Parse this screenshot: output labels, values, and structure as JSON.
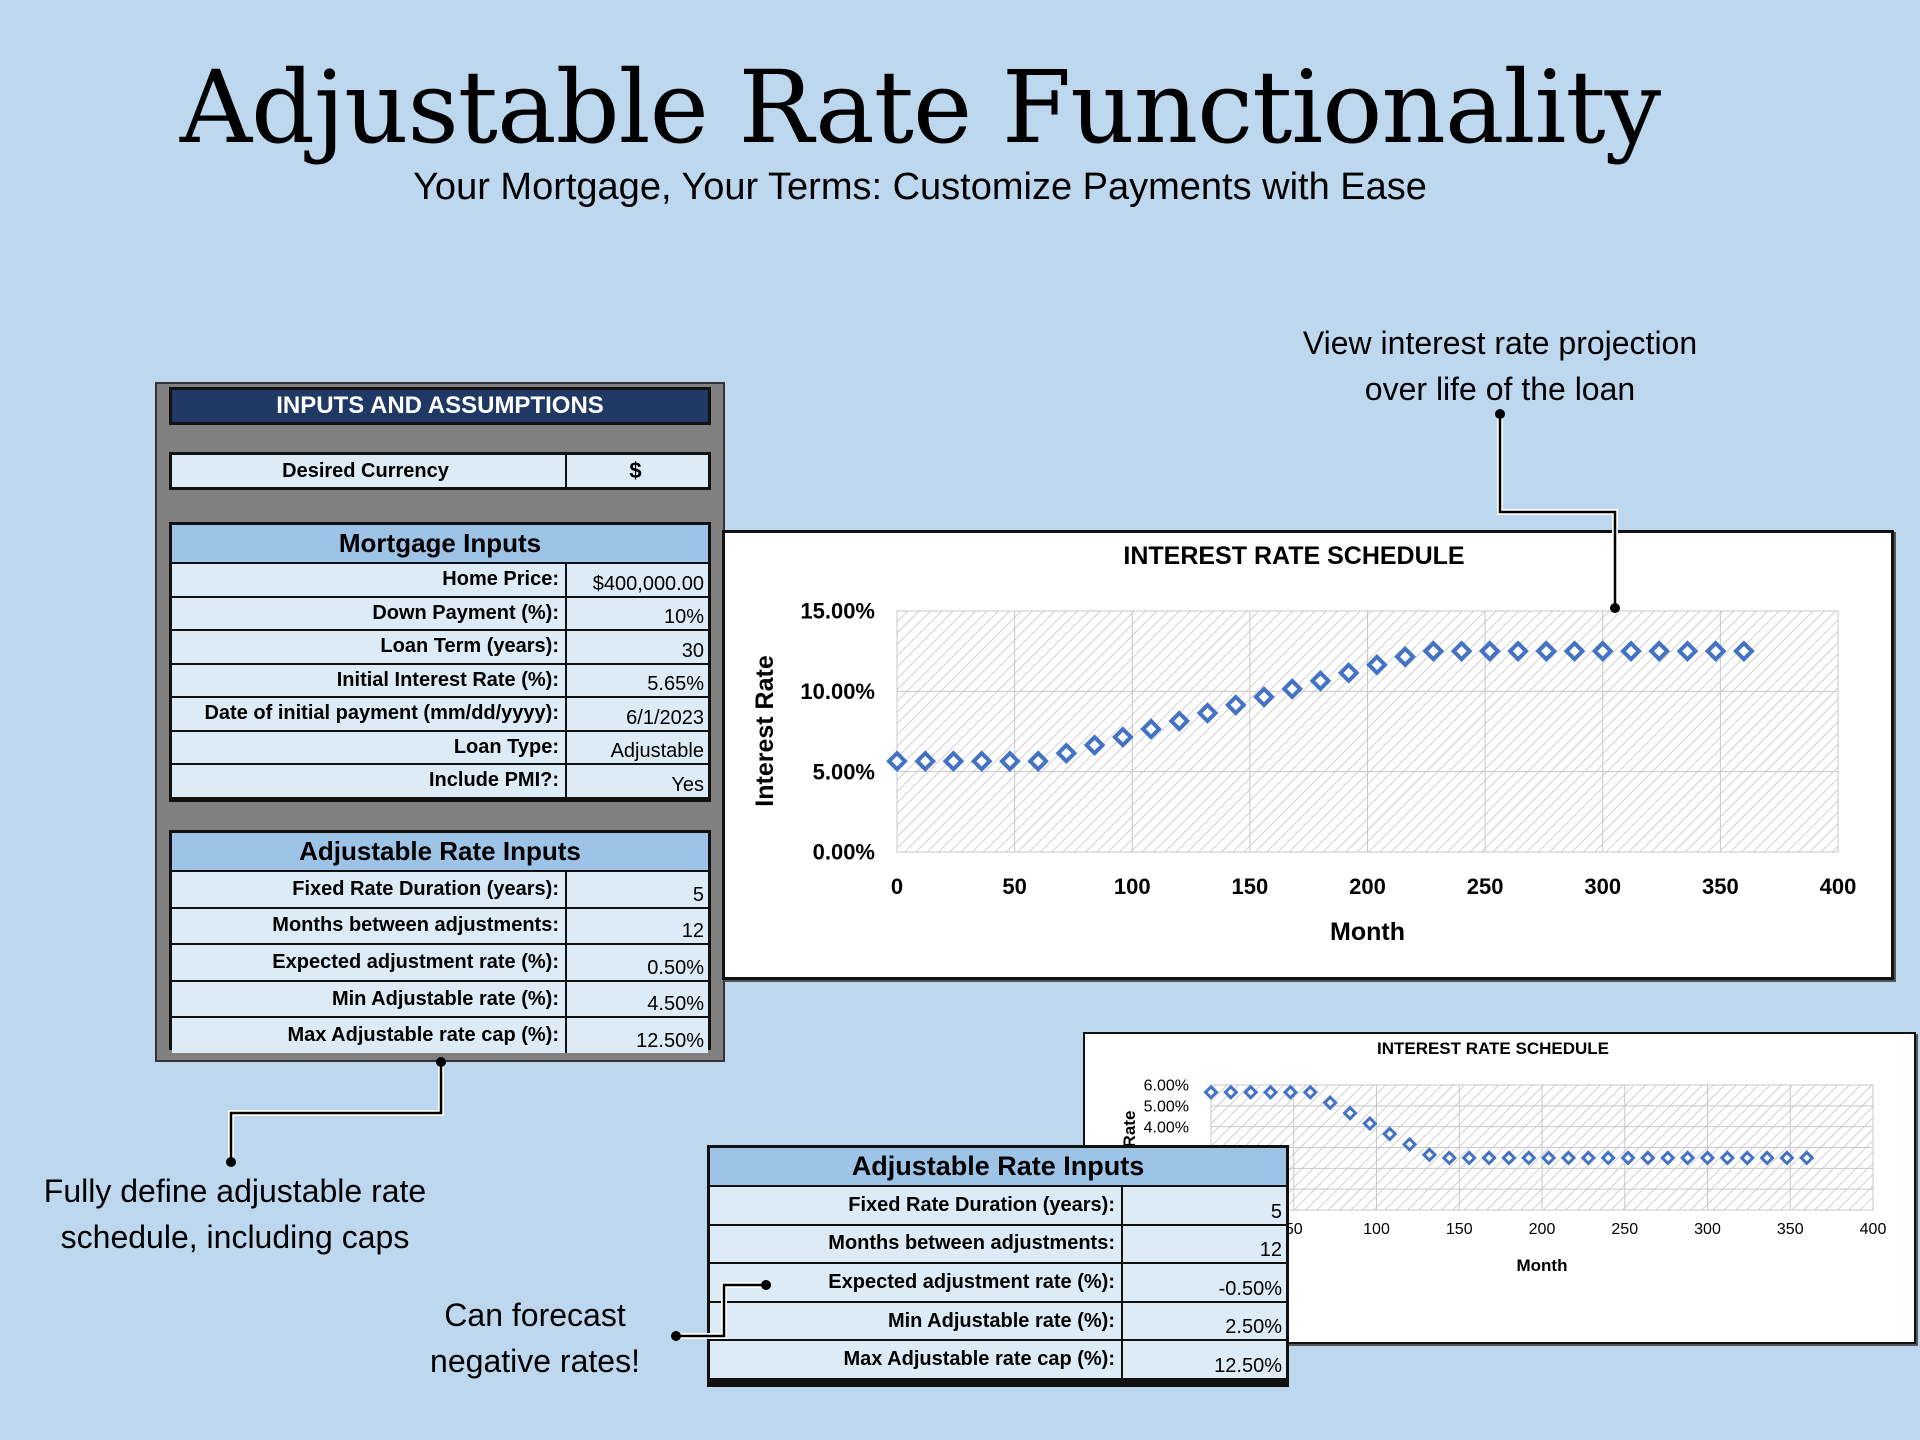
{
  "header": {
    "title": "Adjustable Rate Functionality",
    "subtitle": "Your Mortgage, Your Terms: Customize Payments with Ease"
  },
  "notes": {
    "top_right_line1": "View interest rate projection",
    "top_right_line2": "over life of the loan",
    "left_line1": "Fully define adjustable rate",
    "left_line2": "schedule, including caps",
    "bottom_line1": "Can forecast",
    "bottom_line2": "negative rates!"
  },
  "inputs_panel": {
    "heading": "INPUTS AND ASSUMPTIONS",
    "currency_label": "Desired Currency",
    "currency_value": "$",
    "mortgage_header": "Mortgage Inputs",
    "mortgage_rows": [
      {
        "label": "Home Price:",
        "value": "$400,000.00"
      },
      {
        "label": "Down Payment (%):",
        "value": "10%"
      },
      {
        "label": "Loan Term (years):",
        "value": "30"
      },
      {
        "label": "Initial Interest Rate (%):",
        "value": "5.65%"
      },
      {
        "label": "Date of initial payment (mm/dd/yyyy):",
        "value": "6/1/2023"
      },
      {
        "label": "Loan Type:",
        "value": "Adjustable"
      },
      {
        "label": "Include PMI?:",
        "value": "Yes"
      }
    ],
    "adjustable_header": "Adjustable Rate Inputs",
    "adjustable_rows": [
      {
        "label": "Fixed Rate Duration (years):",
        "value": "5"
      },
      {
        "label": "Months between adjustments:",
        "value": "12"
      },
      {
        "label": "Expected adjustment rate (%):",
        "value": "0.50%"
      },
      {
        "label": "Min Adjustable rate (%):",
        "value": "4.50%"
      },
      {
        "label": "Max Adjustable rate cap (%):",
        "value": "12.50%"
      }
    ]
  },
  "negative_panel": {
    "adjustable_header": "Adjustable Rate Inputs",
    "adjustable_rows": [
      {
        "label": "Fixed Rate Duration (years):",
        "value": "5"
      },
      {
        "label": "Months between adjustments:",
        "value": "12"
      },
      {
        "label": "Expected adjustment rate (%):",
        "value": "-0.50%"
      },
      {
        "label": "Min Adjustable rate (%):",
        "value": "2.50%"
      },
      {
        "label": "Max Adjustable rate cap (%):",
        "value": "12.50%"
      }
    ]
  },
  "chart_data": [
    {
      "type": "scatter",
      "title": "INTEREST RATE SCHEDULE",
      "xlabel": "Month",
      "ylabel": "Interest Rate",
      "xlim": [
        0,
        400
      ],
      "ylim": [
        0,
        15
      ],
      "x_ticks": [
        "0",
        "50",
        "100",
        "150",
        "200",
        "250",
        "300",
        "350",
        "400"
      ],
      "y_ticks": [
        "0.00%",
        "5.00%",
        "10.00%",
        "15.00%"
      ],
      "x": [
        0,
        12,
        24,
        36,
        48,
        60,
        72,
        84,
        96,
        108,
        120,
        132,
        144,
        156,
        168,
        180,
        192,
        204,
        216,
        228,
        240,
        252,
        264,
        276,
        288,
        300,
        312,
        324,
        336,
        348,
        360
      ],
      "y": [
        5.65,
        5.65,
        5.65,
        5.65,
        5.65,
        5.65,
        6.15,
        6.65,
        7.15,
        7.65,
        8.15,
        8.65,
        9.15,
        9.65,
        10.15,
        10.65,
        11.15,
        11.65,
        12.15,
        12.5,
        12.5,
        12.5,
        12.5,
        12.5,
        12.5,
        12.5,
        12.5,
        12.5,
        12.5,
        12.5,
        12.5
      ],
      "grid": true,
      "marker_color": "#4472c4"
    },
    {
      "type": "scatter",
      "title": "INTEREST RATE SCHEDULE",
      "xlabel": "Month",
      "ylabel": "Rate",
      "xlim": [
        0,
        400
      ],
      "ylim": [
        0,
        6
      ],
      "x_ticks": [
        "50",
        "100",
        "150",
        "200",
        "250",
        "300",
        "350",
        "400"
      ],
      "y_ticks": [
        "4.00%",
        "5.00%",
        "6.00%"
      ],
      "x": [
        0,
        12,
        24,
        36,
        48,
        60,
        72,
        84,
        96,
        108,
        120,
        132,
        144,
        156,
        168,
        180,
        192,
        204,
        216,
        228,
        240,
        252,
        264,
        276,
        288,
        300,
        312,
        324,
        336,
        348,
        360
      ],
      "y": [
        5.65,
        5.65,
        5.65,
        5.65,
        5.65,
        5.65,
        5.15,
        4.65,
        4.15,
        3.65,
        3.15,
        2.65,
        2.5,
        2.5,
        2.5,
        2.5,
        2.5,
        2.5,
        2.5,
        2.5,
        2.5,
        2.5,
        2.5,
        2.5,
        2.5,
        2.5,
        2.5,
        2.5,
        2.5,
        2.5,
        2.5
      ],
      "grid": true,
      "marker_color": "#4472c4"
    }
  ]
}
